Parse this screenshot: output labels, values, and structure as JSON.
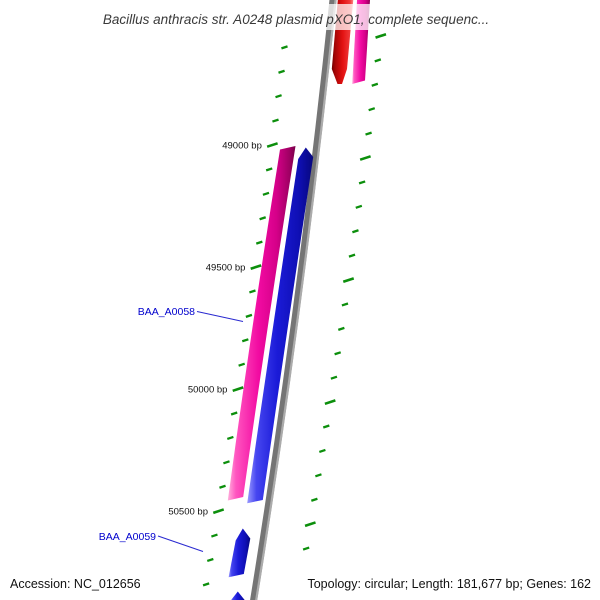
{
  "title": "Bacillus anthracis str. A0248 plasmid pXO1, complete sequenc...",
  "status_bar": {
    "accession": "Accession: NC_012656",
    "summary": "Topology: circular; Length: 181,677 bp; Genes: 162"
  },
  "ruler": {
    "unit": "bp",
    "minor_interval_bp": 100,
    "major_interval_bp": 500,
    "major_tick_labels": [
      "49000 bp",
      "49500 bp",
      "50000 bp",
      "50500 bp"
    ],
    "tick_color": "#0c8f0c"
  },
  "backbone": {
    "name": "plasmid backbone (circular, zoomed segment)",
    "color": "#757575"
  },
  "features": [
    {
      "id": "feature-red-top",
      "label": null,
      "shape": "arrow",
      "direction": "down",
      "side": "right-of-backbone",
      "color": "#e21111",
      "clipped": "top edge"
    },
    {
      "id": "feature-magenta-top",
      "label": null,
      "shape": "block",
      "direction": "down",
      "side": "right-of-backbone",
      "color": "#f20ba2",
      "clipped": "top edge"
    },
    {
      "id": "feature-baa-a0058",
      "label": "BAA_A0058",
      "shape": "block",
      "direction": "down",
      "side": "left-of-backbone",
      "color": "#f20ba2"
    },
    {
      "id": "feature-blue-long",
      "label": null,
      "shape": "arrow",
      "direction": "up",
      "side": "left-of-backbone",
      "color": "#1b1bd8"
    },
    {
      "id": "feature-baa-a0059",
      "label": "BAA_A0059",
      "shape": "arrow",
      "direction": "up",
      "side": "left-of-backbone",
      "color": "#1b1bd8"
    },
    {
      "id": "feature-blue-bottom-partial",
      "label": null,
      "shape": "arrow",
      "direction": "up",
      "side": "left-of-backbone",
      "color": "#1b1bd8",
      "clipped": "bottom edge"
    }
  ],
  "labels": {
    "gene1": "BAA_A0058",
    "gene2": "BAA_A0059"
  }
}
